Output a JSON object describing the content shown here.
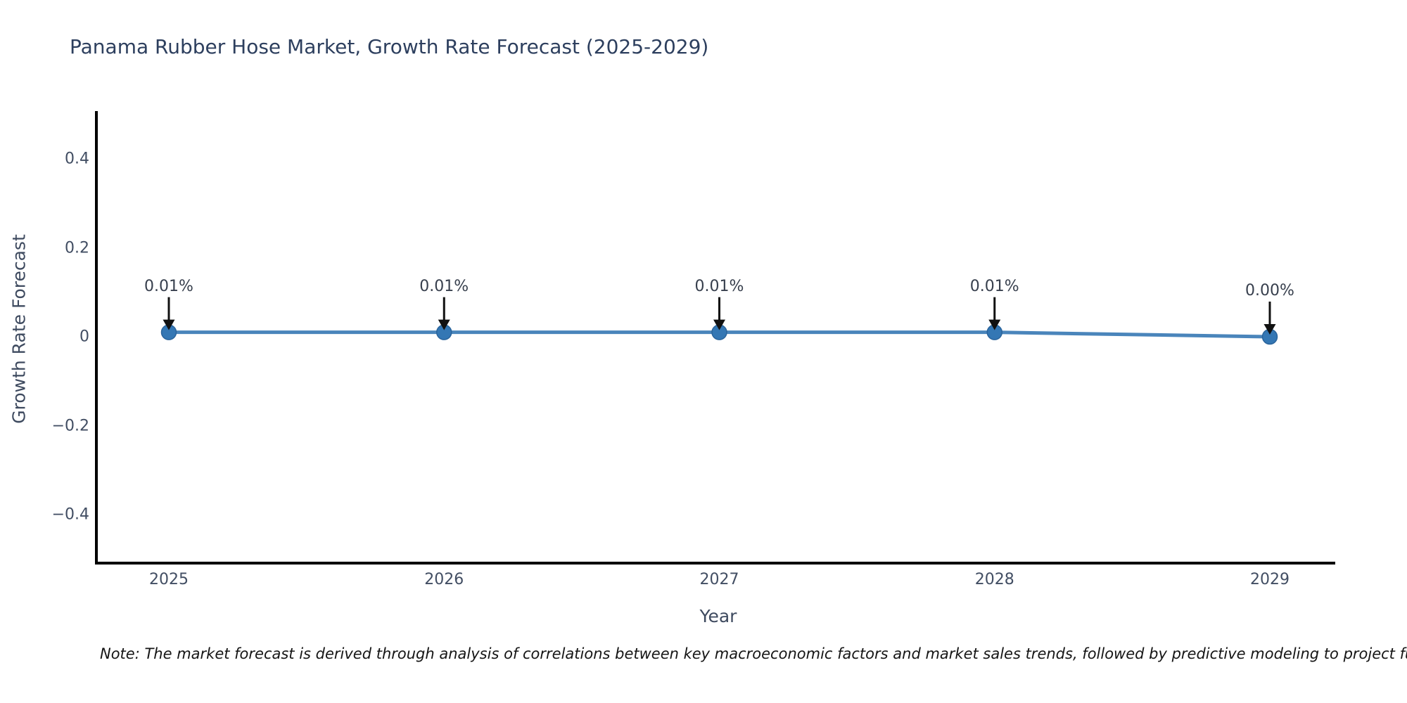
{
  "chart": {
    "title": "Panama Rubber Hose Market, Growth Rate Forecast (2025-2029)",
    "x_axis": {
      "label": "Year",
      "ticks": [
        "2025",
        "2026",
        "2027",
        "2028",
        "2029"
      ]
    },
    "y_axis": {
      "label": "Growth Rate Forecast",
      "ticks": [
        "0.4",
        "0.2",
        "0",
        "−0.2",
        "−0.4"
      ]
    },
    "note": "Note: The market forecast is derived through analysis of correlations between key macroeconomic factors and market sales trends, followed by predictive modeling to project future sales."
  },
  "chart_data": {
    "type": "line",
    "title": "Panama Rubber Hose Market, Growth Rate Forecast (2025-2029)",
    "xlabel": "Year",
    "ylabel": "Growth Rate Forecast",
    "x": [
      2025,
      2026,
      2027,
      2028,
      2029
    ],
    "series": [
      {
        "name": "Growth Rate Forecast",
        "values": [
          0.01,
          0.01,
          0.01,
          0.01,
          0.0
        ]
      }
    ],
    "point_labels": [
      "0.01%",
      "0.01%",
      "0.01%",
      "0.01%",
      "0.00%"
    ],
    "yticks": [
      0.4,
      0.2,
      0,
      -0.2,
      -0.4
    ],
    "ylim": [
      -0.51,
      0.5
    ],
    "grid": false,
    "legend_position": "none",
    "line_color": "#4a85bb",
    "marker_color": "#3477b4",
    "marker_edge_color": "#2a649c",
    "axis_spine_color": "#000000",
    "annotation_arrow_color": "#111111"
  }
}
